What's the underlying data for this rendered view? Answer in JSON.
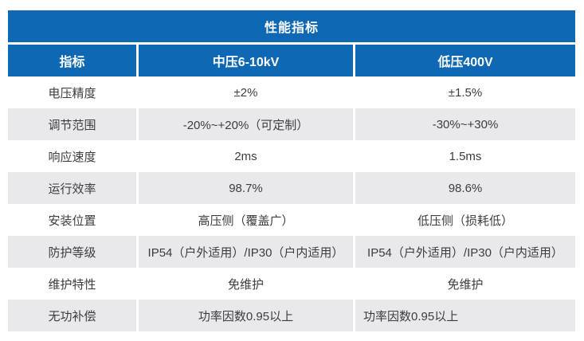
{
  "colors": {
    "header_blue": "#0E68B3",
    "zebra_gray": "#E9E9EB",
    "row_white": "#FFFFFF",
    "header_text": "#FFFFFF",
    "body_text": "#3D3D3F"
  },
  "table": {
    "title": "性能指标",
    "columns": [
      "指标",
      "中压6-10kV",
      "低压400V"
    ],
    "rows": [
      {
        "label": "电压精度",
        "mv": "±2%",
        "lv": "±1.5%"
      },
      {
        "label": "调节范围",
        "mv": "-20%~+20%（可定制）",
        "lv": "-30%~+30%"
      },
      {
        "label": "响应速度",
        "mv": "2ms",
        "lv": "1.5ms"
      },
      {
        "label": "运行效率",
        "mv": "98.7%",
        "lv": "98.6%"
      },
      {
        "label": "安装位置",
        "mv": "高压侧（覆盖广）",
        "lv": "低压侧（损耗低）"
      },
      {
        "label": "防护等级",
        "mv": "IP54（户外适用）/IP30（户内适用）",
        "lv": "IP54（户外适用）/IP30（户内适用）"
      },
      {
        "label": "维护特性",
        "mv": "免维护",
        "lv": "免维护"
      },
      {
        "label": "无功补偿",
        "mv": "功率因数0.95以上",
        "lv": "功率因数0.95以上"
      }
    ]
  }
}
